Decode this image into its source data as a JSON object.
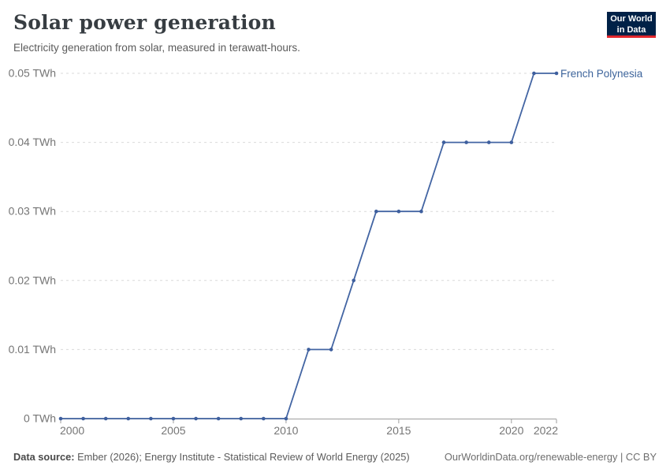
{
  "header": {
    "title": "Solar power generation",
    "subtitle": "Electricity generation from solar, measured in terawatt-hours."
  },
  "logo": {
    "name": "owid-logo",
    "line1": "Our World",
    "line2": "in Data"
  },
  "chart_data": {
    "type": "line",
    "title": "Solar power generation",
    "subtitle": "Electricity generation from solar, measured in terawatt-hours.",
    "unit": "TWh",
    "x": [
      2000,
      2001,
      2002,
      2003,
      2004,
      2005,
      2006,
      2007,
      2008,
      2009,
      2010,
      2011,
      2012,
      2013,
      2014,
      2015,
      2016,
      2017,
      2018,
      2019,
      2020,
      2021,
      2022
    ],
    "series": [
      {
        "name": "French Polynesia",
        "values": [
          0,
          0,
          0,
          0,
          0,
          0,
          0,
          0,
          0,
          0,
          0,
          0.01,
          0.01,
          0.02,
          0.03,
          0.03,
          0.03,
          0.04,
          0.04,
          0.04,
          0.04,
          0.05,
          0.05
        ]
      }
    ],
    "xlim": [
      2000,
      2022
    ],
    "ylim": [
      0,
      0.05
    ],
    "x_tick_labels": [
      "2000",
      "2005",
      "2010",
      "2015",
      "2020",
      "2022"
    ],
    "x_tick_values": [
      2000,
      2005,
      2010,
      2015,
      2020,
      2022
    ],
    "y_tick_values": [
      0,
      0.01,
      0.02,
      0.03,
      0.04,
      0.05
    ],
    "y_tick_labels": [
      "0 TWh",
      "0.01 TWh",
      "0.02 TWh",
      "0.03 TWh",
      "0.04 TWh",
      "0.05 TWh"
    ],
    "grid": "horizontal-dashed",
    "legend_position": "line-end-label",
    "markers": true
  },
  "colors": {
    "line": "#4365a3",
    "marker": "#3e5f9e",
    "series_label": "#3d649b",
    "grid": "#dadada",
    "axis": "#9e9e9e",
    "tick_text": "#757575",
    "logo_bg": "#002147",
    "logo_stripe": "#e2262c"
  },
  "footer": {
    "source_label": "Data source:",
    "source_text": " Ember (2026); Energy Institute - Statistical Review of World Energy (2025)",
    "link": "OurWorldinData.org/renewable-energy | CC BY"
  }
}
